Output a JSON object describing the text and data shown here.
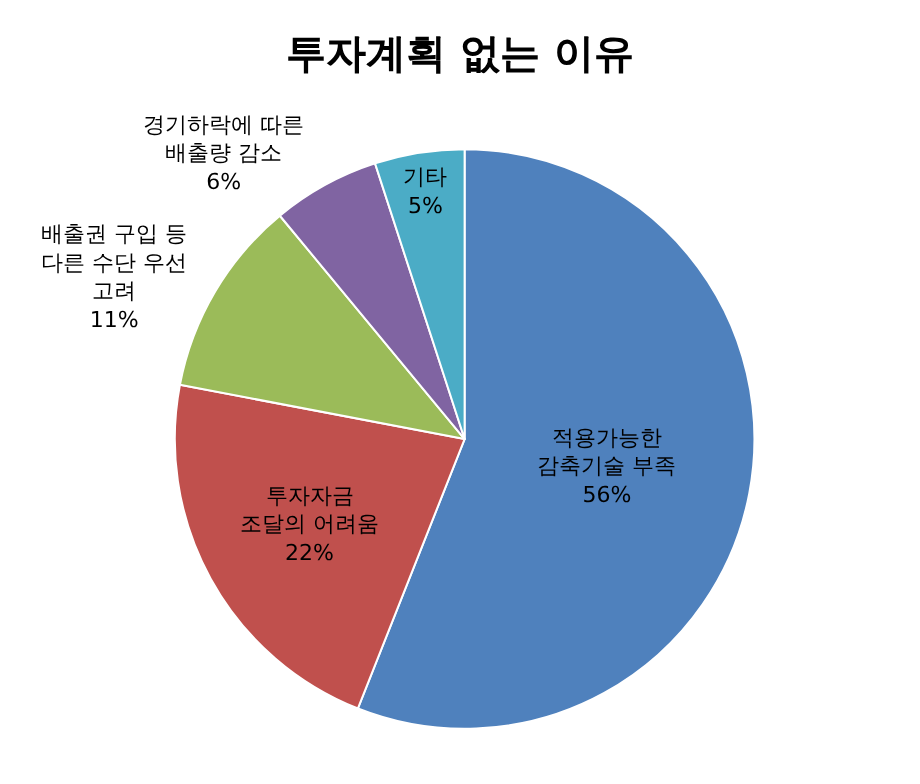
{
  "chart_data": {
    "type": "pie",
    "title": "투자계획 없는 이유",
    "categories": [
      "적용가능한\n감축기술 부족",
      "투자자금\n조달의 어려움",
      "배출권 구입 등\n다른 수단 우선\n고려",
      "경기하락에 따른\n배출량 감소",
      "기타"
    ],
    "values": [
      56,
      22,
      11,
      6,
      5
    ],
    "value_labels": [
      "56%",
      "22%",
      "11%",
      "6%",
      "5%"
    ],
    "colors": [
      "#4f81bd",
      "#c0504d",
      "#9bbb59",
      "#8064a2",
      "#4bacc6"
    ],
    "legend": false
  }
}
